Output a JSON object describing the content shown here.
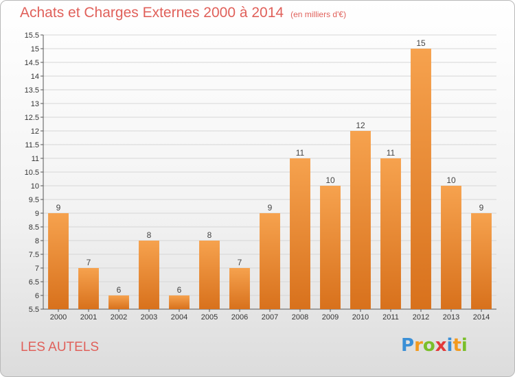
{
  "title": "Achats et Charges Externes 2000 à 2014",
  "subtitle": "(en milliers d'€)",
  "commune": "LES AUTELS",
  "logo": {
    "letters": [
      "P",
      "r",
      "o",
      "x",
      "i",
      "t",
      "i"
    ],
    "colors": [
      "#3a8fd6",
      "#f39a1e",
      "#7abf2a",
      "#e23a3a",
      "#3a8fd6",
      "#f39a1e",
      "#7abf2a"
    ]
  },
  "colors": {
    "bar_top": "#f6a24e",
    "bar_bottom": "#d8711c",
    "title": "#e0605a"
  },
  "chart_data": {
    "type": "bar",
    "categories": [
      "2000",
      "2001",
      "2002",
      "2003",
      "2004",
      "2005",
      "2006",
      "2007",
      "2008",
      "2009",
      "2010",
      "2011",
      "2012",
      "2013",
      "2014"
    ],
    "values": [
      9,
      7,
      6,
      8,
      6,
      8,
      7,
      9,
      11,
      10,
      12,
      11,
      15,
      10,
      9
    ],
    "value_labels": [
      "9",
      "7",
      "6",
      "8",
      "6",
      "8",
      "7",
      "9",
      "11",
      "10",
      "12",
      "11",
      "15",
      "10",
      "9"
    ],
    "ylim": [
      5.5,
      15.5
    ],
    "yticks": [
      5.5,
      6,
      6.5,
      7,
      7.5,
      8,
      8.5,
      9,
      9.5,
      10,
      10.5,
      11,
      11.5,
      12,
      12.5,
      13,
      13.5,
      14,
      14.5,
      15,
      15.5
    ],
    "ytick_labels": [
      "5.5",
      "6",
      "6.5",
      "7",
      "7.5",
      "8",
      "8.5",
      "9",
      "9.5",
      "10",
      "10.5",
      "11",
      "11.5",
      "12",
      "12.5",
      "13",
      "13.5",
      "14",
      "14.5",
      "15",
      "15.5"
    ],
    "grid": true,
    "legend": false
  }
}
